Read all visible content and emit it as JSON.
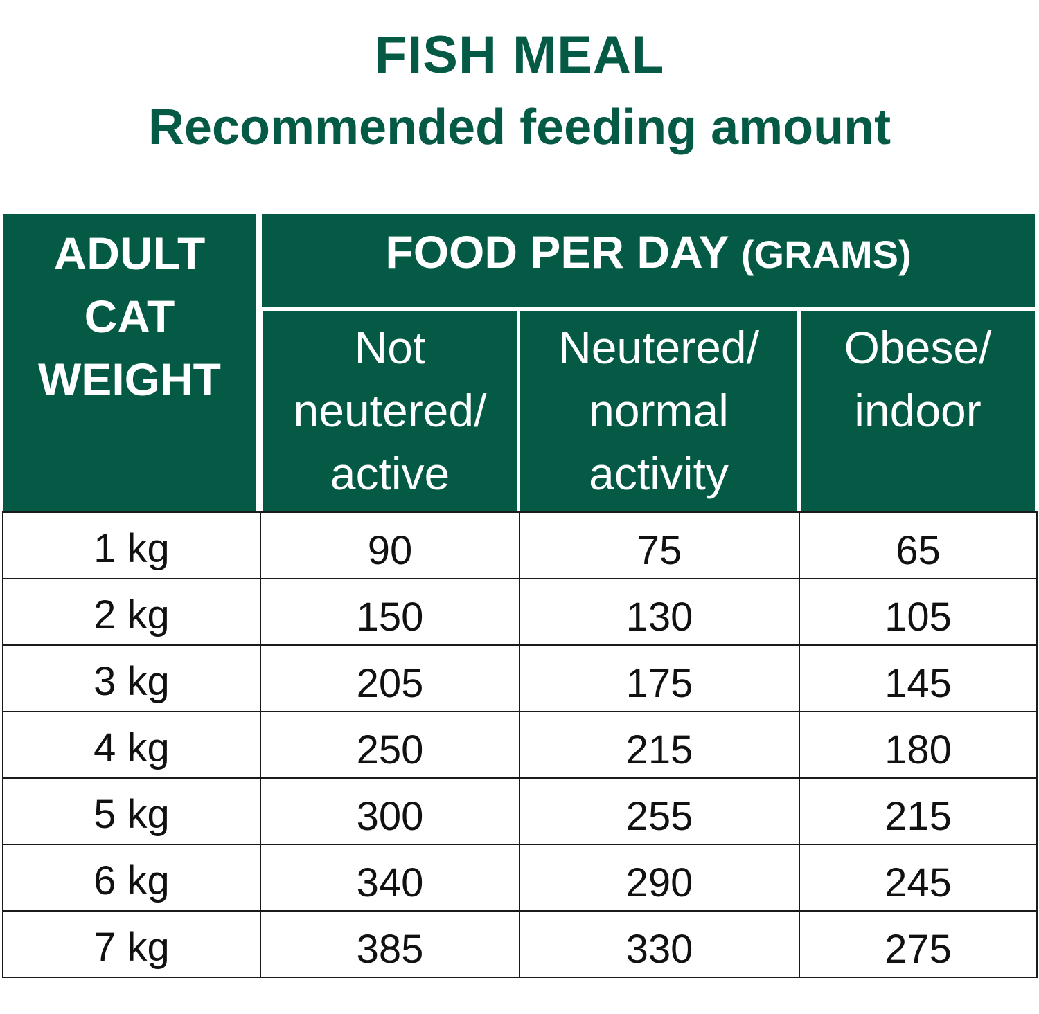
{
  "title": "FISH MEAL",
  "subtitle": "Recommended feeding amount",
  "header": {
    "weight_lines": [
      "ADULT",
      "CAT",
      "WEIGHT"
    ],
    "food_label": "FOOD PER DAY",
    "food_units": "(GRAMS)",
    "columns": [
      {
        "lines": [
          "Not",
          "neutered/",
          "active"
        ]
      },
      {
        "lines": [
          "Neutered/",
          "normal",
          "activity"
        ]
      },
      {
        "lines": [
          "Obese/",
          "indoor"
        ]
      }
    ]
  },
  "rows": [
    {
      "weight": "1 kg",
      "values": [
        "90",
        "75",
        "65"
      ]
    },
    {
      "weight": "2 kg",
      "values": [
        "150",
        "130",
        "105"
      ]
    },
    {
      "weight": "3 kg",
      "values": [
        "205",
        "175",
        "145"
      ]
    },
    {
      "weight": "4 kg",
      "values": [
        "250",
        "215",
        "180"
      ]
    },
    {
      "weight": "5 kg",
      "values": [
        "300",
        "255",
        "215"
      ]
    },
    {
      "weight": "6 kg",
      "values": [
        "340",
        "290",
        "245"
      ]
    },
    {
      "weight": "7 kg",
      "values": [
        "385",
        "330",
        "275"
      ]
    }
  ],
  "colors": {
    "brand_green": "#045a44",
    "header_text": "#ffffff",
    "grid": "#1a1a1a"
  }
}
